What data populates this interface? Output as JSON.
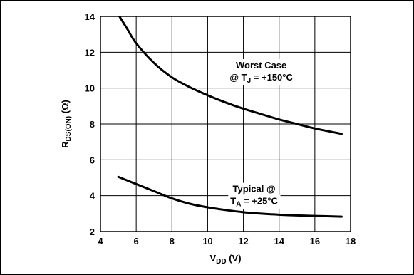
{
  "chart_data": {
    "type": "line",
    "xlabel": {
      "main": "V",
      "sub": "DD",
      "suffix": " (V)"
    },
    "ylabel": {
      "main": "R",
      "sub": "DS(ON)",
      "suffix": " (Ω)"
    },
    "xlim": [
      4,
      18
    ],
    "ylim": [
      2,
      14
    ],
    "xticks": [
      4,
      6,
      8,
      10,
      12,
      14,
      16,
      18
    ],
    "yticks": [
      2,
      4,
      6,
      8,
      10,
      12,
      14
    ],
    "grid": true,
    "series": [
      {
        "name": "Worst Case @ TJ = +150°C",
        "color": "#000000",
        "x": [
          5.0,
          5.5,
          6.0,
          7.0,
          8.0,
          9.0,
          10.0,
          11.0,
          12.0,
          13.0,
          14.0,
          15.0,
          16.0,
          17.5
        ],
        "y": [
          14.1,
          13.3,
          12.5,
          11.4,
          10.6,
          10.05,
          9.6,
          9.2,
          8.85,
          8.55,
          8.25,
          8.0,
          7.75,
          7.45
        ]
      },
      {
        "name": "Typical @ TA = +25°C",
        "color": "#000000",
        "x": [
          5.0,
          6.0,
          7.0,
          8.0,
          9.0,
          10.0,
          11.0,
          12.0,
          13.0,
          14.0,
          15.0,
          16.0,
          17.5
        ],
        "y": [
          5.05,
          4.65,
          4.25,
          3.85,
          3.55,
          3.35,
          3.2,
          3.08,
          3.0,
          2.94,
          2.9,
          2.87,
          2.83
        ]
      }
    ],
    "annotations": [
      {
        "line1": "Worst Case",
        "line2_prefix": "@ T",
        "line2_sub": "J",
        "line2_suffix": "  = +150°C",
        "anchor_x": 13.0,
        "anchor_y": 11.1
      },
      {
        "line1": "Typical @",
        "line2_prefix": "T",
        "line2_sub": "A",
        "line2_suffix": " = +25°C",
        "anchor_x": 12.6,
        "anchor_y": 4.2
      }
    ]
  }
}
